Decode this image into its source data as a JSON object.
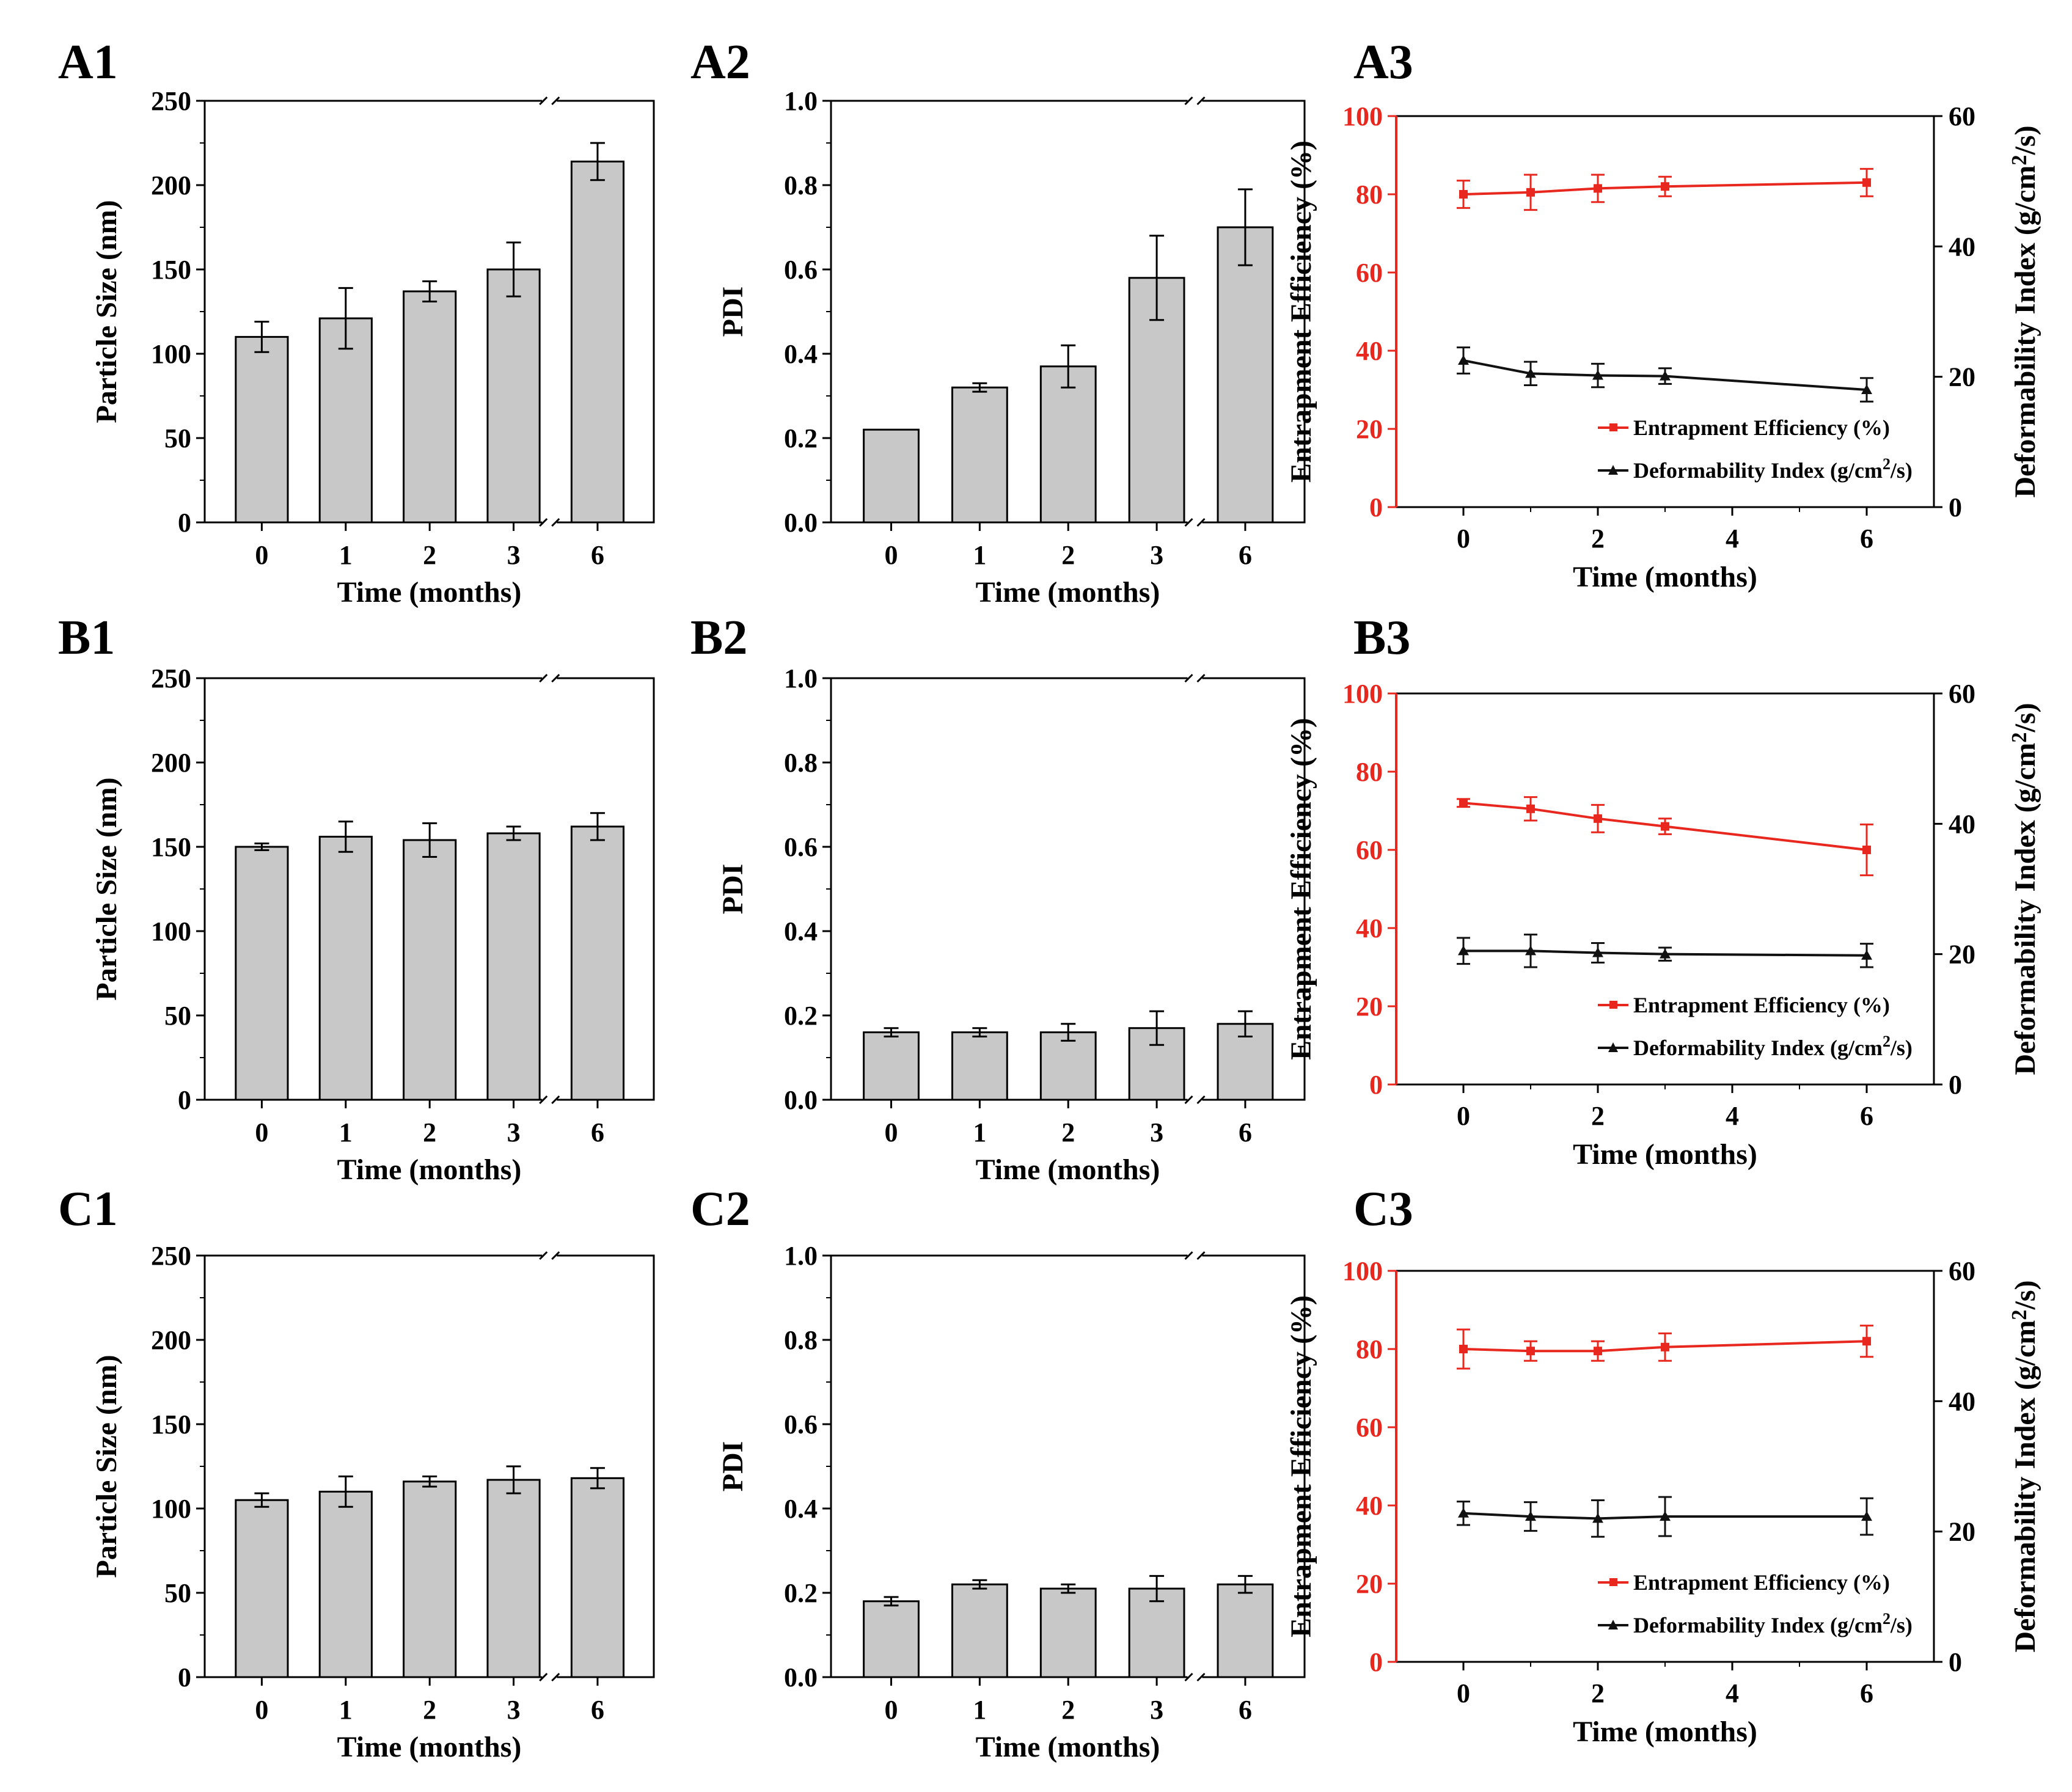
{
  "colors": {
    "bar": "#c8c8c8",
    "axis": "#000000",
    "red": "#e8271e",
    "black": "#111111"
  },
  "chart_data": [
    {
      "id": "A1",
      "type": "bar",
      "label": "A1",
      "xlabel": "Time (months)",
      "ylabel": "Particle Size (nm)",
      "categories": [
        "0",
        "1",
        "2",
        "3",
        "6"
      ],
      "ylim": [
        0,
        250
      ],
      "yticks": [
        "0",
        "50",
        "100",
        "150",
        "200",
        "250"
      ],
      "values": [
        110,
        121,
        137,
        150,
        214
      ],
      "errors": [
        9,
        18,
        6,
        16,
        11
      ],
      "axis_break": true
    },
    {
      "id": "A2",
      "type": "bar",
      "label": "A2",
      "xlabel": "Time (months)",
      "ylabel": "PDI",
      "categories": [
        "0",
        "1",
        "2",
        "3",
        "6"
      ],
      "ylim": [
        0,
        1
      ],
      "yticks": [
        "0.0",
        "0.2",
        "0.4",
        "0.6",
        "0.8",
        "1.0"
      ],
      "values": [
        0.22,
        0.32,
        0.37,
        0.58,
        0.7
      ],
      "errors": [
        0.0,
        0.01,
        0.05,
        0.1,
        0.09
      ],
      "axis_break": true
    },
    {
      "id": "A3",
      "type": "line",
      "label": "A3",
      "xlabel": "Time (months)",
      "ylabel_left": "Entrapment Efficiency (%)",
      "ylabel_right": "Deformability Index (g/cm2/s)",
      "x": [
        0,
        1,
        2,
        3,
        6
      ],
      "xlim": [
        -1,
        7
      ],
      "xticks": [
        "0",
        "2",
        "4",
        "6"
      ],
      "ylim_left": [
        0,
        100
      ],
      "yticks_left": [
        "0",
        "20",
        "40",
        "60",
        "80",
        "100"
      ],
      "ylim_right": [
        0,
        60
      ],
      "yticks_right": [
        "0",
        "20",
        "40",
        "60"
      ],
      "series": [
        {
          "name": "Entrapment Efficiency (%)",
          "axis": "left",
          "color": "red",
          "marker": "square",
          "values": [
            80,
            80.5,
            81.5,
            82,
            83
          ],
          "errors": [
            3.5,
            4.5,
            3.5,
            2.5,
            3.5
          ]
        },
        {
          "name": "Deformability Index (g/cm2/s)",
          "axis": "right",
          "color": "black",
          "marker": "triangle",
          "values": [
            22.5,
            20.5,
            20.2,
            20.1,
            18
          ],
          "errors": [
            2,
            1.8,
            1.8,
            1.2,
            1.8
          ]
        }
      ],
      "legend_position": "lower-right"
    },
    {
      "id": "B1",
      "type": "bar",
      "label": "B1",
      "xlabel": "Time (months)",
      "ylabel": "Particle Size (nm)",
      "categories": [
        "0",
        "1",
        "2",
        "3",
        "6"
      ],
      "ylim": [
        0,
        250
      ],
      "yticks": [
        "0",
        "50",
        "100",
        "150",
        "200",
        "250"
      ],
      "values": [
        150,
        156,
        154,
        158,
        162
      ],
      "errors": [
        2,
        9,
        10,
        4,
        8
      ],
      "axis_break": true
    },
    {
      "id": "B2",
      "type": "bar",
      "label": "B2",
      "xlabel": "Time (months)",
      "ylabel": "PDI",
      "categories": [
        "0",
        "1",
        "2",
        "3",
        "6"
      ],
      "ylim": [
        0,
        1
      ],
      "yticks": [
        "0.0",
        "0.2",
        "0.4",
        "0.6",
        "0.8",
        "1.0"
      ],
      "values": [
        0.16,
        0.16,
        0.16,
        0.17,
        0.18
      ],
      "errors": [
        0.01,
        0.01,
        0.02,
        0.04,
        0.03
      ],
      "axis_break": true
    },
    {
      "id": "B3",
      "type": "line",
      "label": "B3",
      "xlabel": "Time (months)",
      "ylabel_left": "Entrapment Efficiency (%)",
      "ylabel_right": "Deformability Index (g/cm2/s)",
      "x": [
        0,
        1,
        2,
        3,
        6
      ],
      "xlim": [
        -1,
        7
      ],
      "xticks": [
        "0",
        "2",
        "4",
        "6"
      ],
      "ylim_left": [
        0,
        100
      ],
      "yticks_left": [
        "0",
        "20",
        "40",
        "60",
        "80",
        "100"
      ],
      "ylim_right": [
        0,
        60
      ],
      "yticks_right": [
        "0",
        "20",
        "40",
        "60"
      ],
      "series": [
        {
          "name": "Entrapment Efficiency (%)",
          "axis": "left",
          "color": "red",
          "marker": "square",
          "values": [
            72,
            70.5,
            68,
            66,
            60
          ],
          "errors": [
            1,
            3,
            3.5,
            2,
            6.5
          ]
        },
        {
          "name": "Deformability Index (g/cm2/s)",
          "axis": "right",
          "color": "black",
          "marker": "triangle",
          "values": [
            20.5,
            20.5,
            20.2,
            20,
            19.8
          ],
          "errors": [
            2,
            2.5,
            1.5,
            1,
            1.8
          ]
        }
      ],
      "legend_position": "lower-right"
    },
    {
      "id": "C1",
      "type": "bar",
      "label": "C1",
      "xlabel": "Time (months)",
      "ylabel": "Particle Size (nm)",
      "categories": [
        "0",
        "1",
        "2",
        "3",
        "6"
      ],
      "ylim": [
        0,
        250
      ],
      "yticks": [
        "0",
        "50",
        "100",
        "150",
        "200",
        "250"
      ],
      "values": [
        105,
        110,
        116,
        117,
        118
      ],
      "errors": [
        4,
        9,
        3,
        8,
        6
      ],
      "axis_break": true
    },
    {
      "id": "C2",
      "type": "bar",
      "label": "C2",
      "xlabel": "Time (months)",
      "ylabel": "PDI",
      "categories": [
        "0",
        "1",
        "2",
        "3",
        "6"
      ],
      "ylim": [
        0,
        1
      ],
      "yticks": [
        "0.0",
        "0.2",
        "0.4",
        "0.6",
        "0.8",
        "1.0"
      ],
      "values": [
        0.18,
        0.22,
        0.21,
        0.21,
        0.22
      ],
      "errors": [
        0.01,
        0.01,
        0.01,
        0.03,
        0.02
      ],
      "axis_break": true
    },
    {
      "id": "C3",
      "type": "line",
      "label": "C3",
      "xlabel": "Time (months)",
      "ylabel_left": "Entrapment Efficiency (%)",
      "ylabel_right": "Deformability Index (g/cm2/s)",
      "x": [
        0,
        1,
        2,
        3,
        6
      ],
      "xlim": [
        -1,
        7
      ],
      "xticks": [
        "0",
        "2",
        "4",
        "6"
      ],
      "ylim_left": [
        0,
        100
      ],
      "yticks_left": [
        "0",
        "20",
        "40",
        "60",
        "80",
        "100"
      ],
      "ylim_right": [
        0,
        60
      ],
      "yticks_right": [
        "0",
        "20",
        "40",
        "60"
      ],
      "series": [
        {
          "name": "Entrapment Efficiency (%)",
          "axis": "left",
          "color": "red",
          "marker": "square",
          "values": [
            80,
            79.5,
            79.5,
            80.5,
            82
          ],
          "errors": [
            5,
            2.5,
            2.5,
            3.5,
            4
          ]
        },
        {
          "name": "Deformability Index (g/cm2/s)",
          "axis": "right",
          "color": "black",
          "marker": "triangle",
          "values": [
            22.8,
            22.3,
            22,
            22.3,
            22.3
          ],
          "errors": [
            1.8,
            2.2,
            2.8,
            3,
            2.8
          ]
        }
      ],
      "legend_position": "lower-right"
    }
  ]
}
